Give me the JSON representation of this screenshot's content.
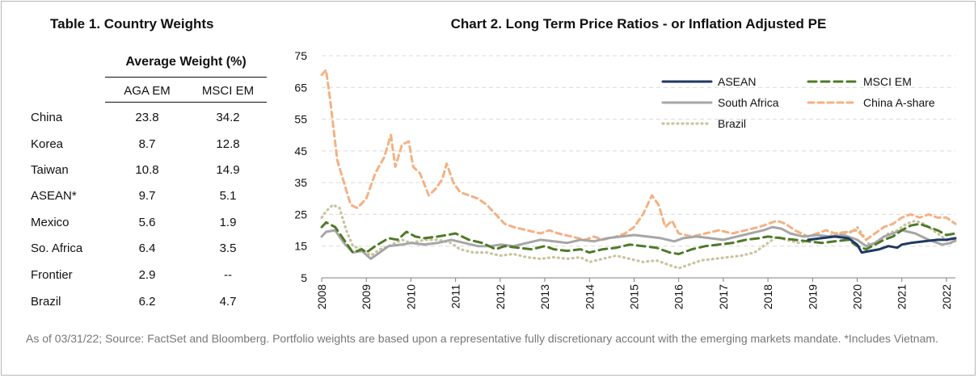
{
  "table": {
    "title": "Table 1. Country Weights",
    "group_header": "Average Weight (%)",
    "columns": [
      "AGA EM",
      "MSCI EM"
    ],
    "rows": [
      {
        "country": "China",
        "aga": "23.8",
        "msci": "34.2"
      },
      {
        "country": "Korea",
        "aga": "8.7",
        "msci": "12.8"
      },
      {
        "country": "Taiwan",
        "aga": "10.8",
        "msci": "14.9"
      },
      {
        "country": "ASEAN*",
        "aga": "9.7",
        "msci": "5.1"
      },
      {
        "country": "Mexico",
        "aga": "5.6",
        "msci": "1.9"
      },
      {
        "country": "So. Africa",
        "aga": "6.4",
        "msci": "3.5"
      },
      {
        "country": "Frontier",
        "aga": "2.9",
        "msci": "--"
      },
      {
        "country": "Brazil",
        "aga": "6.2",
        "msci": "4.7"
      }
    ]
  },
  "footnote": "As of 03/31/22; Source: FactSet and Bloomberg.  Portfolio weights are based upon a representative fully discretionary account with the emerging markets mandate. *Includes Vietnam.",
  "chart_data": {
    "type": "line",
    "title": "Chart 2. Long Term Price Ratios - or Inflation Adjusted PE",
    "xlabel": "",
    "ylabel": "",
    "xlim": [
      2008,
      2022.2
    ],
    "ylim": [
      5,
      75
    ],
    "yticks": [
      5,
      15,
      25,
      35,
      45,
      55,
      65,
      75
    ],
    "xticks": [
      "2008",
      "2009",
      "2010",
      "2011",
      "2012",
      "2013",
      "2014",
      "2015",
      "2016",
      "2017",
      "2018",
      "2019",
      "2020",
      "2021",
      "2022"
    ],
    "grid": "horizontal dashed",
    "legend_position": "top-right",
    "colors": {
      "ASEAN": "#1f3864",
      "MSCI EM": "#4f7a28",
      "South Africa": "#a6a6a6",
      "China A-share": "#f4b183",
      "Brazil": "#c9c4a0"
    },
    "series": [
      {
        "name": "ASEAN",
        "style": "solid",
        "points": [
          [
            2018.9,
            17
          ],
          [
            2019.2,
            17.5
          ],
          [
            2019.5,
            18
          ],
          [
            2019.8,
            17.5
          ],
          [
            2020.0,
            15.5
          ],
          [
            2020.1,
            13
          ],
          [
            2020.3,
            13.5
          ],
          [
            2020.5,
            14
          ],
          [
            2020.7,
            15
          ],
          [
            2020.9,
            14.5
          ],
          [
            2021.0,
            15.5
          ],
          [
            2021.2,
            16
          ],
          [
            2021.5,
            16.5
          ],
          [
            2021.8,
            17
          ],
          [
            2022.0,
            17
          ],
          [
            2022.2,
            17.5
          ]
        ]
      },
      {
        "name": "MSCI EM",
        "style": "dashed",
        "points": [
          [
            2008.0,
            21
          ],
          [
            2008.1,
            22.5
          ],
          [
            2008.3,
            21
          ],
          [
            2008.5,
            17
          ],
          [
            2008.7,
            13
          ],
          [
            2008.9,
            14
          ],
          [
            2009.0,
            13
          ],
          [
            2009.2,
            15
          ],
          [
            2009.5,
            17.5
          ],
          [
            2009.7,
            17
          ],
          [
            2009.9,
            19.5
          ],
          [
            2010.1,
            18
          ],
          [
            2010.3,
            17.5
          ],
          [
            2010.6,
            18
          ],
          [
            2010.8,
            18.5
          ],
          [
            2011.0,
            19
          ],
          [
            2011.3,
            17
          ],
          [
            2011.6,
            16
          ],
          [
            2011.9,
            14
          ],
          [
            2012.1,
            15
          ],
          [
            2012.4,
            14.5
          ],
          [
            2012.7,
            14
          ],
          [
            2013.0,
            15
          ],
          [
            2013.2,
            14
          ],
          [
            2013.5,
            13.5
          ],
          [
            2013.8,
            14
          ],
          [
            2014.0,
            13
          ],
          [
            2014.3,
            14
          ],
          [
            2014.6,
            14.5
          ],
          [
            2014.9,
            15.5
          ],
          [
            2015.2,
            15
          ],
          [
            2015.5,
            14.5
          ],
          [
            2015.8,
            13
          ],
          [
            2016.0,
            12.5
          ],
          [
            2016.3,
            14
          ],
          [
            2016.6,
            15
          ],
          [
            2016.9,
            15.5
          ],
          [
            2017.2,
            16
          ],
          [
            2017.5,
            17
          ],
          [
            2017.8,
            17.5
          ],
          [
            2018.0,
            18
          ],
          [
            2018.3,
            17.5
          ],
          [
            2018.6,
            17
          ],
          [
            2018.9,
            16.5
          ],
          [
            2019.2,
            16
          ],
          [
            2019.5,
            16.5
          ],
          [
            2019.8,
            17
          ],
          [
            2020.0,
            15
          ],
          [
            2020.2,
            14
          ],
          [
            2020.4,
            15.5
          ],
          [
            2020.6,
            17
          ],
          [
            2020.8,
            18
          ],
          [
            2021.0,
            20
          ],
          [
            2021.2,
            21.5
          ],
          [
            2021.4,
            22
          ],
          [
            2021.6,
            21
          ],
          [
            2021.8,
            20
          ],
          [
            2022.0,
            18.5
          ],
          [
            2022.2,
            19
          ]
        ]
      },
      {
        "name": "South Africa",
        "style": "solid",
        "points": [
          [
            2008.0,
            18
          ],
          [
            2008.1,
            19.5
          ],
          [
            2008.3,
            20
          ],
          [
            2008.5,
            16
          ],
          [
            2008.7,
            13
          ],
          [
            2008.9,
            13.5
          ],
          [
            2009.1,
            11
          ],
          [
            2009.3,
            13
          ],
          [
            2009.5,
            15
          ],
          [
            2009.8,
            15.5
          ],
          [
            2010.0,
            16
          ],
          [
            2010.3,
            15.5
          ],
          [
            2010.6,
            16
          ],
          [
            2010.9,
            17
          ],
          [
            2011.2,
            16
          ],
          [
            2011.5,
            15
          ],
          [
            2011.8,
            15
          ],
          [
            2012.0,
            15.5
          ],
          [
            2012.3,
            15
          ],
          [
            2012.6,
            16
          ],
          [
            2012.9,
            17
          ],
          [
            2013.2,
            16.5
          ],
          [
            2013.5,
            16
          ],
          [
            2013.8,
            17
          ],
          [
            2014.1,
            16.5
          ],
          [
            2014.4,
            17.5
          ],
          [
            2014.7,
            18
          ],
          [
            2015.0,
            18.5
          ],
          [
            2015.3,
            18
          ],
          [
            2015.6,
            17.5
          ],
          [
            2015.9,
            16.5
          ],
          [
            2016.1,
            17.5
          ],
          [
            2016.4,
            18
          ],
          [
            2016.7,
            17.5
          ],
          [
            2017.0,
            17
          ],
          [
            2017.3,
            18
          ],
          [
            2017.6,
            19
          ],
          [
            2017.9,
            20
          ],
          [
            2018.1,
            21
          ],
          [
            2018.3,
            20.5
          ],
          [
            2018.5,
            19
          ],
          [
            2018.8,
            18
          ],
          [
            2019.1,
            18.5
          ],
          [
            2019.4,
            18
          ],
          [
            2019.7,
            18.5
          ],
          [
            2020.0,
            17
          ],
          [
            2020.2,
            15
          ],
          [
            2020.4,
            16
          ],
          [
            2020.6,
            18
          ],
          [
            2020.8,
            19
          ],
          [
            2021.0,
            20
          ],
          [
            2021.3,
            19
          ],
          [
            2021.6,
            17
          ],
          [
            2021.9,
            15.5
          ],
          [
            2022.1,
            16
          ],
          [
            2022.2,
            17
          ]
        ]
      },
      {
        "name": "China A-share",
        "style": "dashed",
        "points": [
          [
            2008.0,
            69
          ],
          [
            2008.1,
            70.5
          ],
          [
            2008.2,
            60
          ],
          [
            2008.35,
            42
          ],
          [
            2008.5,
            35
          ],
          [
            2008.65,
            28
          ],
          [
            2008.8,
            27
          ],
          [
            2009.0,
            30
          ],
          [
            2009.2,
            38
          ],
          [
            2009.4,
            43
          ],
          [
            2009.55,
            50
          ],
          [
            2009.65,
            40
          ],
          [
            2009.8,
            47
          ],
          [
            2009.95,
            48
          ],
          [
            2010.05,
            40
          ],
          [
            2010.2,
            38
          ],
          [
            2010.4,
            31
          ],
          [
            2010.55,
            33
          ],
          [
            2010.7,
            36
          ],
          [
            2010.8,
            41
          ],
          [
            2010.95,
            35
          ],
          [
            2011.1,
            32
          ],
          [
            2011.3,
            31
          ],
          [
            2011.5,
            30
          ],
          [
            2011.7,
            28
          ],
          [
            2011.9,
            25
          ],
          [
            2012.1,
            22
          ],
          [
            2012.3,
            21
          ],
          [
            2012.6,
            20
          ],
          [
            2012.9,
            19
          ],
          [
            2013.1,
            20
          ],
          [
            2013.3,
            19
          ],
          [
            2013.6,
            18
          ],
          [
            2013.9,
            17
          ],
          [
            2014.1,
            18
          ],
          [
            2014.3,
            17
          ],
          [
            2014.6,
            18
          ],
          [
            2014.8,
            19
          ],
          [
            2015.0,
            21
          ],
          [
            2015.2,
            25
          ],
          [
            2015.4,
            31
          ],
          [
            2015.55,
            28
          ],
          [
            2015.7,
            21
          ],
          [
            2015.85,
            23
          ],
          [
            2016.0,
            19
          ],
          [
            2016.3,
            18
          ],
          [
            2016.6,
            19
          ],
          [
            2016.9,
            20
          ],
          [
            2017.2,
            19
          ],
          [
            2017.5,
            20
          ],
          [
            2017.8,
            21
          ],
          [
            2018.0,
            22
          ],
          [
            2018.2,
            23
          ],
          [
            2018.4,
            22
          ],
          [
            2018.6,
            20
          ],
          [
            2018.9,
            18
          ],
          [
            2019.1,
            19
          ],
          [
            2019.3,
            20
          ],
          [
            2019.5,
            19
          ],
          [
            2019.8,
            19.5
          ],
          [
            2020.0,
            20
          ],
          [
            2020.2,
            17
          ],
          [
            2020.4,
            19
          ],
          [
            2020.6,
            21
          ],
          [
            2020.8,
            22
          ],
          [
            2021.0,
            24
          ],
          [
            2021.2,
            25
          ],
          [
            2021.4,
            24
          ],
          [
            2021.6,
            25
          ],
          [
            2021.8,
            24
          ],
          [
            2022.0,
            24
          ],
          [
            2022.2,
            22
          ]
        ]
      },
      {
        "name": "Brazil",
        "style": "dotted",
        "points": [
          [
            2008.0,
            24
          ],
          [
            2008.1,
            26
          ],
          [
            2008.25,
            28
          ],
          [
            2008.4,
            27
          ],
          [
            2008.55,
            20
          ],
          [
            2008.7,
            15
          ],
          [
            2008.9,
            14
          ],
          [
            2009.1,
            12
          ],
          [
            2009.3,
            14
          ],
          [
            2009.5,
            15
          ],
          [
            2009.8,
            17
          ],
          [
            2010.0,
            16
          ],
          [
            2010.3,
            17
          ],
          [
            2010.6,
            17
          ],
          [
            2010.9,
            16
          ],
          [
            2011.1,
            14
          ],
          [
            2011.4,
            13
          ],
          [
            2011.7,
            13
          ],
          [
            2012.0,
            12
          ],
          [
            2012.3,
            12.5
          ],
          [
            2012.6,
            11.5
          ],
          [
            2012.9,
            11
          ],
          [
            2013.2,
            11.5
          ],
          [
            2013.5,
            11
          ],
          [
            2013.8,
            11.5
          ],
          [
            2014.0,
            10
          ],
          [
            2014.3,
            11
          ],
          [
            2014.6,
            12
          ],
          [
            2014.9,
            11
          ],
          [
            2015.2,
            10
          ],
          [
            2015.5,
            10.5
          ],
          [
            2015.8,
            9
          ],
          [
            2016.0,
            8
          ],
          [
            2016.2,
            9
          ],
          [
            2016.5,
            10.5
          ],
          [
            2016.8,
            11
          ],
          [
            2017.1,
            11.5
          ],
          [
            2017.4,
            12
          ],
          [
            2017.7,
            13
          ],
          [
            2018.0,
            16
          ],
          [
            2018.2,
            18
          ],
          [
            2018.4,
            17
          ],
          [
            2018.7,
            16
          ],
          [
            2019.0,
            17
          ],
          [
            2019.3,
            18
          ],
          [
            2019.6,
            19
          ],
          [
            2019.9,
            19.5
          ],
          [
            2020.0,
            21
          ],
          [
            2020.15,
            18
          ],
          [
            2020.3,
            15
          ],
          [
            2020.5,
            17
          ],
          [
            2020.7,
            19
          ],
          [
            2020.9,
            20
          ],
          [
            2021.1,
            22
          ],
          [
            2021.3,
            23
          ],
          [
            2021.5,
            22
          ],
          [
            2021.7,
            20
          ],
          [
            2021.9,
            18
          ],
          [
            2022.1,
            16
          ],
          [
            2022.2,
            16.5
          ]
        ]
      }
    ]
  }
}
